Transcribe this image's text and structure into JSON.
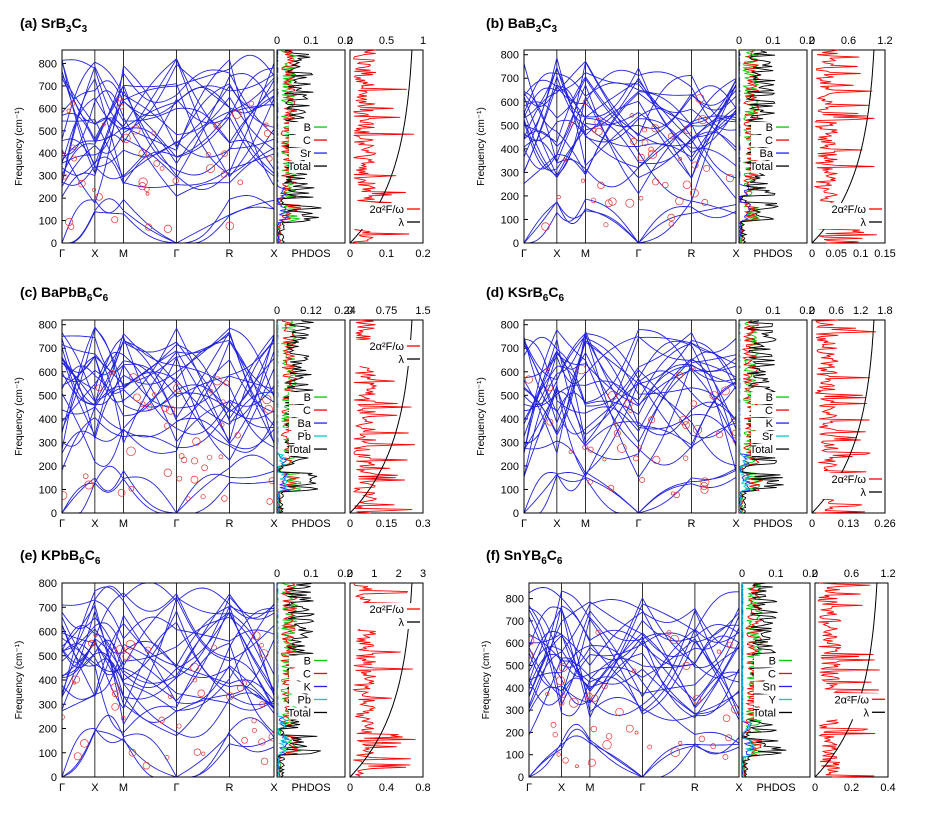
{
  "figure": {
    "panels": [
      {
        "id": "a",
        "title": "(a) SrB",
        "title_sub": [
          "3",
          "C",
          "3"
        ],
        "title_full": "(a) SrB3C3",
        "ylabel": "Frequency (cm⁻¹)",
        "high_symmetry_points": [
          "Γ",
          "X",
          "M",
          "Γ",
          "R",
          "X"
        ],
        "freq_ticks": [
          0,
          100,
          200,
          300,
          400,
          500,
          600,
          700,
          800
        ],
        "freq_range": [
          0,
          860
        ],
        "phdos_top_ticks": [
          "0",
          "0.1",
          "0.2"
        ],
        "phdos_label": "PHDOS",
        "phdos_legend": [
          "B",
          "C",
          "Sr",
          "Total"
        ],
        "eliash_top_ticks": [
          "0",
          "0.5",
          "1"
        ],
        "eliash_bottom_ticks": [
          "0",
          "0.1",
          "0.2"
        ],
        "eliash_legend": [
          "2α²F/ω",
          "λ"
        ],
        "lambda_final": 1.0,
        "eliash_legend_pos": "bottom"
      },
      {
        "id": "b",
        "title_full": "(b) BaB3C3",
        "ylabel": "Frequency (cm⁻¹)",
        "high_symmetry_points": [
          "Γ",
          "X",
          "M",
          "Γ",
          "R",
          "X"
        ],
        "freq_ticks": [
          0,
          100,
          200,
          300,
          400,
          500,
          600,
          700,
          800
        ],
        "freq_range": [
          0,
          820
        ],
        "phdos_top_ticks": [
          "0",
          "0.1",
          "0.2"
        ],
        "phdos_label": "PHDOS",
        "phdos_legend": [
          "B",
          "C",
          "Ba",
          "Total"
        ],
        "eliash_top_ticks": [
          "0",
          "0.6",
          "1.2"
        ],
        "eliash_bottom_ticks": [
          "0",
          "0.05",
          "0.1",
          "0.15"
        ],
        "eliash_legend": [
          "2α²F/ω",
          "λ"
        ],
        "lambda_final": 1.1,
        "eliash_legend_pos": "bottom"
      },
      {
        "id": "c",
        "title_full": "(c) BaPbB6C6",
        "ylabel": "Frequency (cm⁻¹)",
        "high_symmetry_points": [
          "Γ",
          "X",
          "M",
          "Γ",
          "R",
          "X"
        ],
        "freq_ticks": [
          0,
          100,
          200,
          300,
          400,
          500,
          600,
          700,
          800
        ],
        "freq_range": [
          0,
          820
        ],
        "phdos_top_ticks": [
          "0",
          "0.12",
          "0.24"
        ],
        "phdos_label": "PHDOS",
        "phdos_legend": [
          "B",
          "C",
          "Ba",
          "Pb",
          "Total"
        ],
        "eliash_top_ticks": [
          "0",
          "0.75",
          "1.5"
        ],
        "eliash_bottom_ticks": [
          "0",
          "0.15",
          "0.3"
        ],
        "eliash_legend": [
          "2α²F/ω",
          "λ"
        ],
        "lambda_final": 1.5,
        "eliash_legend_pos": "top"
      },
      {
        "id": "d",
        "title_full": "(d) KSrB6C6",
        "ylabel": "Frequency (cm⁻¹)",
        "high_symmetry_points": [
          "Γ",
          "X",
          "M",
          "Γ",
          "R",
          "X"
        ],
        "freq_ticks": [
          0,
          100,
          200,
          300,
          400,
          500,
          600,
          700,
          800
        ],
        "freq_range": [
          0,
          820
        ],
        "phdos_top_ticks": [
          "0",
          "0.1",
          "0.2"
        ],
        "phdos_label": "PHDOS",
        "phdos_legend": [
          "B",
          "C",
          "K",
          "Sr",
          "Total"
        ],
        "eliash_top_ticks": [
          "0",
          "0.6",
          "1.2",
          "1.8"
        ],
        "eliash_bottom_ticks": [
          "0",
          "0.13",
          "0.26"
        ],
        "eliash_legend": [
          "2α²F/ω",
          "λ"
        ],
        "lambda_final": 1.8,
        "eliash_legend_pos": "bottom"
      },
      {
        "id": "e",
        "title_full": "(e) KPbB6C6",
        "ylabel": "Frequency (cm⁻¹)",
        "high_symmetry_points": [
          "Γ",
          "X",
          "M",
          "Γ",
          "R",
          "X"
        ],
        "freq_ticks": [
          0,
          100,
          200,
          300,
          400,
          500,
          600,
          700,
          800
        ],
        "freq_range": [
          0,
          800
        ],
        "phdos_top_ticks": [
          "0",
          "0.1",
          "0.2"
        ],
        "phdos_label": "PHDOS",
        "phdos_legend": [
          "B",
          "C",
          "K",
          "Pb",
          "Total"
        ],
        "eliash_top_ticks": [
          "0",
          "1",
          "2",
          "3"
        ],
        "eliash_bottom_ticks": [
          "0",
          "0.4",
          "0.8"
        ],
        "eliash_legend": [
          "2α²F/ω",
          "λ"
        ],
        "lambda_final": 2.6,
        "eliash_legend_pos": "top"
      },
      {
        "id": "f",
        "title_full": "(f) SnYB6C6",
        "ylabel": "Frequency (cm⁻¹)",
        "high_symmetry_points": [
          "Γ",
          "X",
          "M",
          "Γ",
          "R",
          "X"
        ],
        "freq_ticks": [
          0,
          100,
          200,
          300,
          400,
          500,
          600,
          700,
          800
        ],
        "freq_range": [
          0,
          870
        ],
        "phdos_top_ticks": [
          "0",
          "0.1",
          "0.2"
        ],
        "phdos_label": "PHDOS",
        "phdos_legend": [
          "B",
          "C",
          "Sn",
          "Y",
          "Total"
        ],
        "eliash_top_ticks": [
          "0",
          "0.6",
          "1.2"
        ],
        "eliash_bottom_ticks": [
          "0",
          "0.2",
          "0.4"
        ],
        "eliash_legend": [
          "2α²F/ω",
          "λ"
        ],
        "lambda_final": 1.0,
        "eliash_legend_pos": "middle"
      }
    ]
  },
  "colors": {
    "bands": "#2222dd",
    "fatband_circle": "#e83030",
    "B": "#00cc00",
    "C": "#ff0000",
    "third": "#2222ff",
    "fourth": "#00cccc",
    "Total": "#000000",
    "a2F": "#ff0000",
    "lambda": "#000000"
  },
  "chart_data": [
    {
      "type": "line",
      "title": "(a) SrB3C3",
      "xlabel": "",
      "ylabel": "Frequency (cm-1)",
      "ylim": [
        0,
        860
      ],
      "x_tick_labels": [
        "Γ",
        "X",
        "M",
        "Γ",
        "R",
        "X"
      ],
      "description_series": [
        "phonon bands",
        "PHDOS B",
        "PHDOS C",
        "PHDOS Sr",
        "PHDOS Total",
        "2α²F/ω",
        "λ"
      ]
    },
    {
      "type": "line",
      "title": "(b) BaB3C3",
      "ylim": [
        0,
        820
      ],
      "x_tick_labels": [
        "Γ",
        "X",
        "M",
        "Γ",
        "R",
        "X"
      ]
    },
    {
      "type": "line",
      "title": "(c) BaPbB6C6",
      "ylim": [
        0,
        820
      ],
      "x_tick_labels": [
        "Γ",
        "X",
        "M",
        "Γ",
        "R",
        "X"
      ]
    },
    {
      "type": "line",
      "title": "(d) KSrB6C6",
      "ylim": [
        0,
        820
      ],
      "x_tick_labels": [
        "Γ",
        "X",
        "M",
        "Γ",
        "R",
        "X"
      ]
    },
    {
      "type": "line",
      "title": "(e) KPbB6C6",
      "ylim": [
        0,
        800
      ],
      "x_tick_labels": [
        "Γ",
        "X",
        "M",
        "Γ",
        "R",
        "X"
      ]
    },
    {
      "type": "line",
      "title": "(f) SnYB6C6",
      "ylim": [
        0,
        870
      ],
      "x_tick_labels": [
        "Γ",
        "X",
        "M",
        "Γ",
        "R",
        "X"
      ]
    }
  ]
}
